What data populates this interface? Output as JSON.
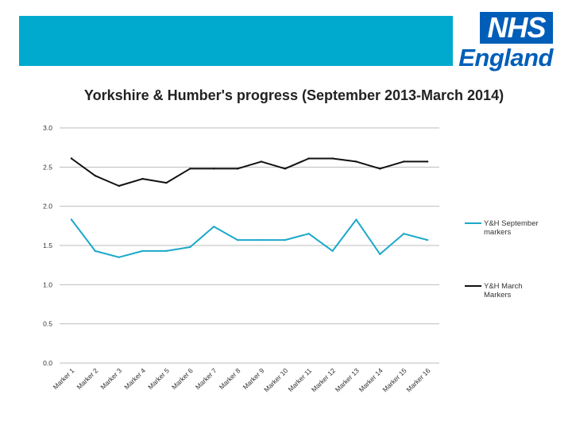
{
  "header": {
    "bar_color": "#00A9CE"
  },
  "logo": {
    "box_text": "NHS",
    "word": "England",
    "color": "#005EB8"
  },
  "chart_data": {
    "type": "line",
    "title": "Yorkshire & Humber's progress (September 2013-March 2014)",
    "categories": [
      "Marker 1",
      "Marker 2",
      "Marker 3",
      "Marker 4",
      "Marker 5",
      "Marker 6",
      "Marker 7",
      "Marker 8",
      "Marker 9",
      "Marker 10",
      "Marker 11",
      "Marker 12",
      "Marker 13",
      "Marker 14",
      "Marker 15",
      "Marker 16"
    ],
    "ylim": [
      0,
      3.0
    ],
    "yticks": [
      "0.0",
      "0.5",
      "1.0",
      "1.5",
      "2.0",
      "2.5",
      "3.0"
    ],
    "grid": true,
    "legend_position": "right",
    "series": [
      {
        "name": "Y&H September markers",
        "color": "#1BA9C9",
        "values": [
          1.83,
          1.43,
          1.35,
          1.43,
          1.43,
          1.48,
          1.74,
          1.57,
          1.57,
          1.57,
          1.65,
          1.43,
          1.83,
          1.39,
          1.65,
          1.57
        ]
      },
      {
        "name": "Y&H March Markers",
        "color": "#111111",
        "values": [
          2.61,
          2.39,
          2.26,
          2.35,
          2.3,
          2.48,
          2.48,
          2.48,
          2.57,
          2.48,
          2.61,
          2.61,
          2.57,
          2.48,
          2.57,
          2.57
        ]
      }
    ]
  }
}
